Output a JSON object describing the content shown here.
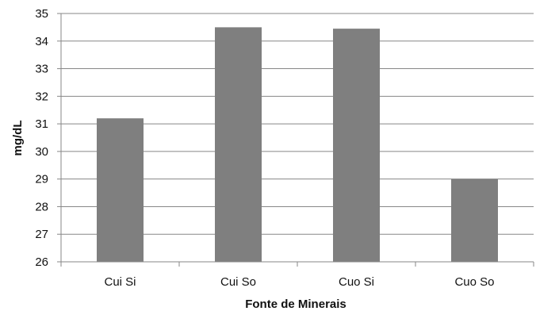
{
  "chart_data": {
    "type": "bar",
    "categories": [
      "Cui Si",
      "Cui So",
      "Cuo Si",
      "Cuo So"
    ],
    "values": [
      31.2,
      34.5,
      34.45,
      29.0
    ],
    "xlabel": "Fonte de Minerais",
    "ylabel": "mg/dL",
    "ylim": [
      26,
      35
    ],
    "yticks": [
      26,
      27,
      28,
      29,
      30,
      31,
      32,
      33,
      34,
      35
    ],
    "grid": true,
    "legend": "none",
    "colors": {
      "bar": "#7f7f7f",
      "grid": "#878787"
    }
  }
}
